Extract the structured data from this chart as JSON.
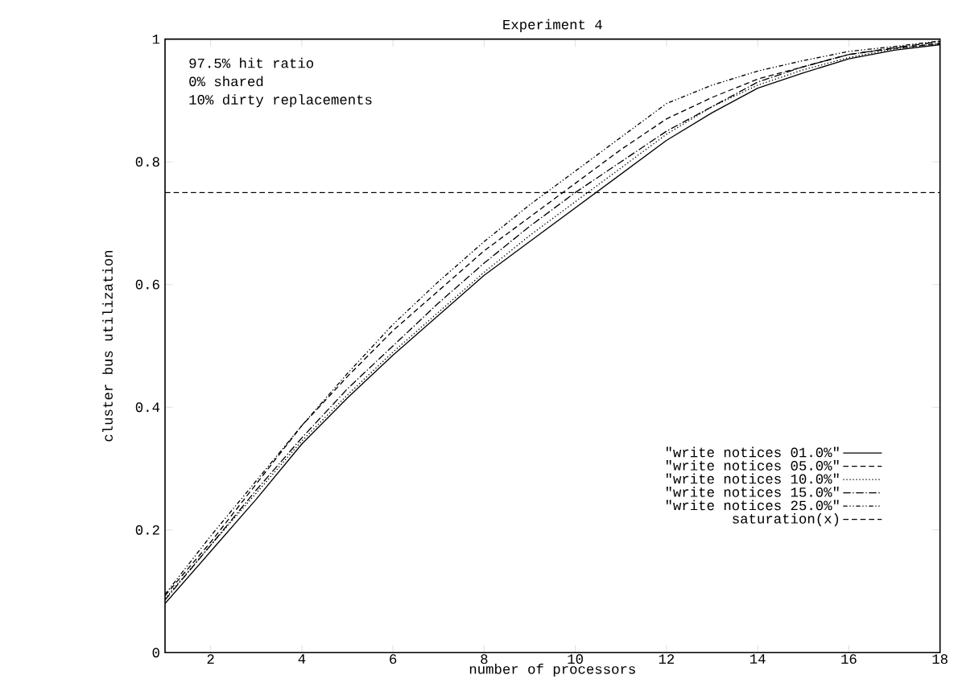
{
  "chart_data": {
    "type": "line",
    "title": "Experiment 4",
    "xlabel": "number of processors",
    "ylabel": "cluster bus utilization",
    "annotations": [
      "97.5% hit ratio",
      "0% shared",
      "10% dirty replacements"
    ],
    "x": [
      1,
      2,
      3,
      4,
      5,
      6,
      7,
      8,
      9,
      10,
      11,
      12,
      13,
      14,
      15,
      16,
      17,
      18
    ],
    "xlim": [
      1,
      18
    ],
    "xticks": [
      2,
      4,
      6,
      8,
      10,
      12,
      14,
      16,
      18
    ],
    "ylim": [
      0,
      1
    ],
    "yticks": [
      0,
      0.2,
      0.4,
      0.6,
      0.8,
      1
    ],
    "grid": false,
    "legend": "bottom right",
    "series": [
      {
        "name": "\"write notices 01.0%\"",
        "color": "#000000",
        "line_style": "solid",
        "values": [
          0.08,
          0.165,
          0.25,
          0.34,
          0.415,
          0.485,
          0.55,
          0.615,
          0.67,
          0.725,
          0.78,
          0.835,
          0.88,
          0.92,
          0.945,
          0.968,
          0.982,
          0.991
        ]
      },
      {
        "name": "\"write notices 05.0%\"",
        "color": "#000000",
        "line_style": "dashed",
        "values": [
          0.093,
          0.18,
          0.275,
          0.37,
          0.45,
          0.525,
          0.59,
          0.655,
          0.71,
          0.765,
          0.82,
          0.87,
          0.905,
          0.935,
          0.955,
          0.975,
          0.985,
          0.993
        ]
      },
      {
        "name": "\"write notices 10.0%\"",
        "color": "#000000",
        "line_style": "dotted",
        "values": [
          0.088,
          0.175,
          0.26,
          0.345,
          0.42,
          0.49,
          0.555,
          0.62,
          0.68,
          0.735,
          0.79,
          0.845,
          0.89,
          0.925,
          0.95,
          0.97,
          0.984,
          0.993
        ]
      },
      {
        "name": "\"write notices 15.0%\"",
        "color": "#000000",
        "line_style": "dashdot",
        "values": [
          0.086,
          0.175,
          0.265,
          0.35,
          0.43,
          0.5,
          0.57,
          0.635,
          0.695,
          0.75,
          0.8,
          0.85,
          0.89,
          0.93,
          0.955,
          0.975,
          0.986,
          0.996
        ]
      },
      {
        "name": "\"write notices 25.0%\"",
        "color": "#000000",
        "line_style": "dashdotdot",
        "values": [
          0.095,
          0.19,
          0.28,
          0.37,
          0.455,
          0.535,
          0.605,
          0.67,
          0.73,
          0.785,
          0.84,
          0.895,
          0.925,
          0.948,
          0.965,
          0.98,
          0.988,
          0.997
        ]
      },
      {
        "name": "saturation(x)",
        "color": "#000000",
        "line_style": "dashed",
        "x": [
          1,
          18
        ],
        "values": [
          0.75,
          0.75
        ]
      }
    ]
  }
}
